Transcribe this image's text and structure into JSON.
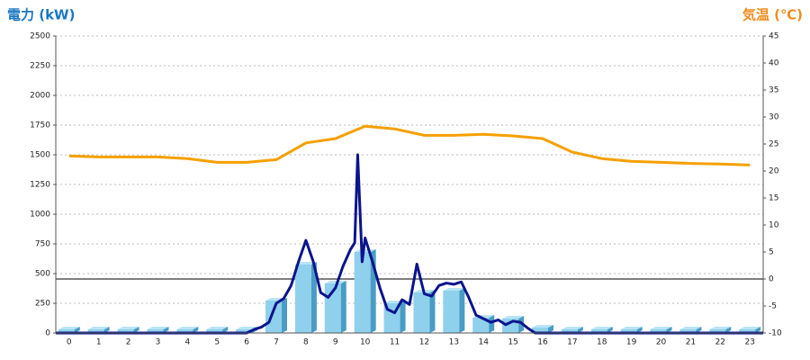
{
  "chart_data": {
    "type": "combo",
    "ylabel": "電力 (kW)",
    "y2label": "気温 (℃)",
    "categories": [
      "0",
      "1",
      "2",
      "3",
      "4",
      "5",
      "6",
      "7",
      "8",
      "9",
      "10",
      "11",
      "12",
      "13",
      "14",
      "15",
      "16",
      "17",
      "18",
      "19",
      "20",
      "21",
      "22",
      "23"
    ],
    "xlim": [
      -0.45,
      23.45
    ],
    "ylim": [
      0,
      2500
    ],
    "yticks": [
      0,
      250,
      500,
      750,
      1000,
      1250,
      1500,
      1750,
      2000,
      2250,
      2500
    ],
    "y2lim": [
      -10,
      45
    ],
    "y2ticks": [
      -10,
      -5,
      0,
      5,
      10,
      15,
      20,
      25,
      30,
      35,
      40,
      45
    ],
    "grid": true,
    "bars": {
      "color": "#8fd0ec",
      "values": [
        30,
        30,
        30,
        30,
        30,
        30,
        30,
        273,
        576,
        417,
        682,
        250,
        341,
        356,
        129,
        121,
        45,
        30,
        30,
        30,
        30,
        30,
        30,
        30
      ]
    },
    "line": {
      "color": "#0a148c",
      "x": [
        -0.45,
        6.0,
        6.25,
        6.5,
        6.75,
        7.0,
        7.25,
        7.5,
        7.75,
        8.0,
        8.25,
        8.5,
        8.75,
        9.0,
        9.25,
        9.5,
        9.65,
        9.75,
        9.85,
        9.9,
        10.0,
        10.25,
        10.5,
        10.75,
        11.0,
        11.25,
        11.5,
        11.75,
        12.0,
        12.25,
        12.5,
        12.75,
        13.0,
        13.25,
        13.5,
        13.75,
        14.0,
        14.25,
        14.5,
        14.75,
        15.0,
        15.25,
        15.5,
        15.75,
        23.45
      ],
      "values": [
        0,
        0,
        30,
        50,
        90,
        250,
        290,
        400,
        600,
        780,
        600,
        340,
        300,
        380,
        560,
        700,
        760,
        1500,
        900,
        600,
        800,
        600,
        380,
        200,
        170,
        280,
        240,
        580,
        330,
        310,
        400,
        420,
        410,
        430,
        300,
        150,
        120,
        90,
        110,
        70,
        100,
        90,
        40,
        0,
        0
      ]
    },
    "temperature": {
      "color": "#f5a000",
      "axis": "y2",
      "values": [
        22.8,
        22.6,
        22.6,
        22.6,
        22.3,
        21.6,
        21.6,
        22.1,
        25.2,
        26.0,
        28.3,
        27.8,
        26.6,
        26.6,
        26.8,
        26.5,
        26.0,
        23.5,
        22.3,
        21.8,
        21.6,
        21.4,
        21.3,
        21.1
      ]
    }
  }
}
